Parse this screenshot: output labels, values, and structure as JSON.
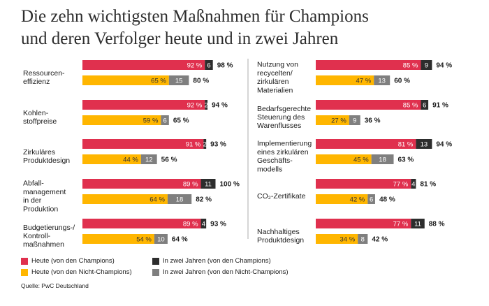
{
  "title": {
    "line1": "Die zehn wichtigsten Maßnahmen für Champions",
    "line2": "und deren Verfolger heute und in zwei Jahren"
  },
  "colors": {
    "champ_today": "#e0304e",
    "champ_2y": "#2d2d2d",
    "non_today": "#ffb600",
    "non_2y": "#7f7f7f"
  },
  "legend": [
    {
      "key": "champ_today",
      "label": "Heute (von den Champions)"
    },
    {
      "key": "champ_2y",
      "label": "In zwei Jahren (von den Champions)"
    },
    {
      "key": "non_today",
      "label": "Heute (von den Nicht-Champions)"
    },
    {
      "key": "non_2y",
      "label": "In zwei Jahren (von den Nicht-Champions)"
    }
  ],
  "source": "Quelle: PwC Deutschland",
  "chart_data": {
    "type": "bar",
    "stacked": true,
    "orientation": "horizontal",
    "value_unit": "%",
    "xlim": [
      0,
      100
    ],
    "series": [
      "Heute (von den Champions)",
      "In zwei Jahren (von den Champions)",
      "Heute (von den Nicht-Champions)",
      "In zwei Jahren (von den Nicht-Champions)"
    ],
    "measures": [
      {
        "label": [
          "Ressourcen-",
          "effizienz"
        ],
        "champions": {
          "today": 92,
          "in_two_years": 6,
          "total": "98 %"
        },
        "non_champions": {
          "today": 65,
          "in_two_years": 15,
          "total": "80 %"
        }
      },
      {
        "label": [
          "Kohlen-",
          "stoffpreise"
        ],
        "champions": {
          "today": 92,
          "in_two_years": 2,
          "total": "94 %"
        },
        "non_champions": {
          "today": 59,
          "in_two_years": 6,
          "total": "65 %"
        }
      },
      {
        "label": [
          "Zirkuläres",
          "Produktdesign"
        ],
        "champions": {
          "today": 91,
          "in_two_years": 2,
          "total": "93 %"
        },
        "non_champions": {
          "today": 44,
          "in_two_years": 12,
          "total": "56 %"
        }
      },
      {
        "label": [
          "Abfall-",
          "management",
          "in der",
          "Produktion"
        ],
        "champions": {
          "today": 89,
          "in_two_years": 11,
          "total": "100 %"
        },
        "non_champions": {
          "today": 64,
          "in_two_years": 18,
          "total": "82 %"
        }
      },
      {
        "label": [
          "Budgetierungs-/",
          "Kontroll-",
          "maßnahmen"
        ],
        "champions": {
          "today": 89,
          "in_two_years": 4,
          "total": "93 %"
        },
        "non_champions": {
          "today": 54,
          "in_two_years": 10,
          "total": "64 %"
        }
      },
      {
        "label": [
          "Nutzung von",
          "recycelten/",
          "zirkulären",
          "Materialien"
        ],
        "champions": {
          "today": 85,
          "in_two_years": 9,
          "total": "94 %"
        },
        "non_champions": {
          "today": 47,
          "in_two_years": 13,
          "total": "60 %"
        }
      },
      {
        "label": [
          "Bedarfsgerechte",
          "Steuerung des",
          "Warenflusses"
        ],
        "champions": {
          "today": 85,
          "in_two_years": 6,
          "total": "91 %"
        },
        "non_champions": {
          "today": 27,
          "in_two_years": 9,
          "total": "36 %"
        }
      },
      {
        "label": [
          "Implementierung",
          "eines zirkulären",
          "Geschäfts-",
          "modells"
        ],
        "champions": {
          "today": 81,
          "in_two_years": 13,
          "total": "94 %"
        },
        "non_champions": {
          "today": 45,
          "in_two_years": 18,
          "total": "63 %"
        }
      },
      {
        "label": [
          "CO₂-Zertifikate"
        ],
        "champions": {
          "today": 77,
          "in_two_years": 4,
          "total": "81 %"
        },
        "non_champions": {
          "today": 42,
          "in_two_years": 6,
          "total": "48 %"
        }
      },
      {
        "label": [
          "Nachhaltiges",
          "Produktdesign"
        ],
        "champions": {
          "today": 77,
          "in_two_years": 11,
          "total": "88 %"
        },
        "non_champions": {
          "today": 34,
          "in_two_years": 8,
          "total": "42 %"
        }
      }
    ]
  }
}
